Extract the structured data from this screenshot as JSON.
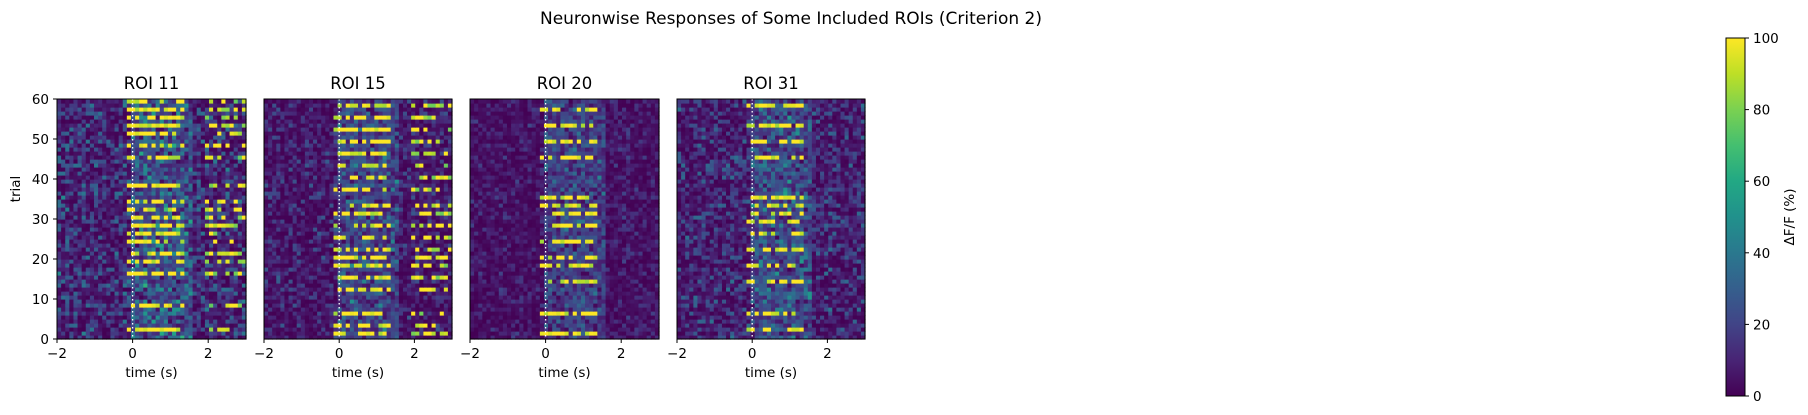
{
  "chart_data": {
    "type": "heatmap",
    "title": "Neuronwise Responses of Some Included ROIs (Criterion 2)",
    "xlabel": "time (s)",
    "ylabel": "trial",
    "xlim": [
      -2,
      3
    ],
    "ylim": [
      0,
      60
    ],
    "x_ticks": [
      "−2",
      "0",
      "2"
    ],
    "y_ticks": [
      "0",
      "10",
      "20",
      "30",
      "40",
      "50",
      "60"
    ],
    "stimulus_onset_s": 0,
    "colormap": "viridis",
    "colorbar": {
      "label": "ΔF/F (%)",
      "range": [
        0,
        100
      ],
      "ticks": [
        "0",
        "20",
        "40",
        "60",
        "80",
        "100"
      ]
    },
    "panels": [
      {
        "title": "ROI 11",
        "bright_trials": [
          2,
          8,
          16,
          19,
          21,
          24,
          26,
          28,
          30,
          32,
          34,
          38,
          45,
          48,
          51,
          53,
          55,
          57,
          59
        ],
        "baseline_level": 22,
        "late_activity": true
      },
      {
        "title": "ROI 15",
        "bright_trials": [
          1,
          3,
          6,
          12,
          15,
          18,
          20,
          22,
          25,
          28,
          31,
          33,
          37,
          40,
          43,
          46,
          49,
          52,
          55,
          58
        ],
        "baseline_level": 14,
        "late_activity": true
      },
      {
        "title": "ROI 20",
        "bright_trials": [
          1,
          6,
          14,
          18,
          20,
          24,
          28,
          31,
          33,
          35,
          45,
          49,
          53,
          57
        ],
        "baseline_level": 10,
        "late_activity": false
      },
      {
        "title": "ROI 31",
        "bright_trials": [
          2,
          6,
          14,
          18,
          22,
          26,
          29,
          31,
          33,
          35,
          45,
          49,
          53,
          58
        ],
        "baseline_level": 18,
        "late_activity": false
      }
    ]
  }
}
